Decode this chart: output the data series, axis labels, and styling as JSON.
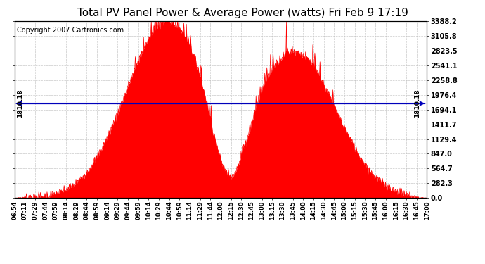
{
  "title": "Total PV Panel Power & Average Power (watts) Fri Feb 9 17:19",
  "copyright": "Copyright 2007 Cartronics.com",
  "avg_power": 1810.18,
  "y_max": 3388.2,
  "y_min": 0.0,
  "ytick_labels": [
    "0.0",
    "282.3",
    "564.7",
    "847.0",
    "1129.4",
    "1411.7",
    "1694.1",
    "1976.4",
    "2258.8",
    "2541.1",
    "2823.5",
    "3105.8",
    "3388.2"
  ],
  "ytick_values": [
    0.0,
    282.3,
    564.7,
    847.0,
    1129.4,
    1411.7,
    1694.1,
    1976.4,
    2258.8,
    2541.1,
    2823.5,
    3105.8,
    3388.2
  ],
  "fill_color": "#FF0000",
  "line_color": "#FF0000",
  "avg_line_color": "#0000BB",
  "background_color": "#FFFFFF",
  "plot_bg_color": "#FFFFFF",
  "grid_color": "#BBBBBB",
  "title_fontsize": 11,
  "copyright_fontsize": 7,
  "xtick_labels": [
    "06:54",
    "07:11",
    "07:29",
    "07:44",
    "07:59",
    "08:14",
    "08:29",
    "08:44",
    "08:59",
    "09:14",
    "09:29",
    "09:44",
    "09:59",
    "10:14",
    "10:29",
    "10:44",
    "10:59",
    "11:14",
    "11:29",
    "11:44",
    "12:00",
    "12:15",
    "12:30",
    "12:45",
    "13:00",
    "13:15",
    "13:30",
    "13:45",
    "14:00",
    "14:15",
    "14:30",
    "14:45",
    "15:00",
    "15:15",
    "15:30",
    "15:45",
    "16:00",
    "16:15",
    "16:30",
    "16:45",
    "17:00"
  ]
}
